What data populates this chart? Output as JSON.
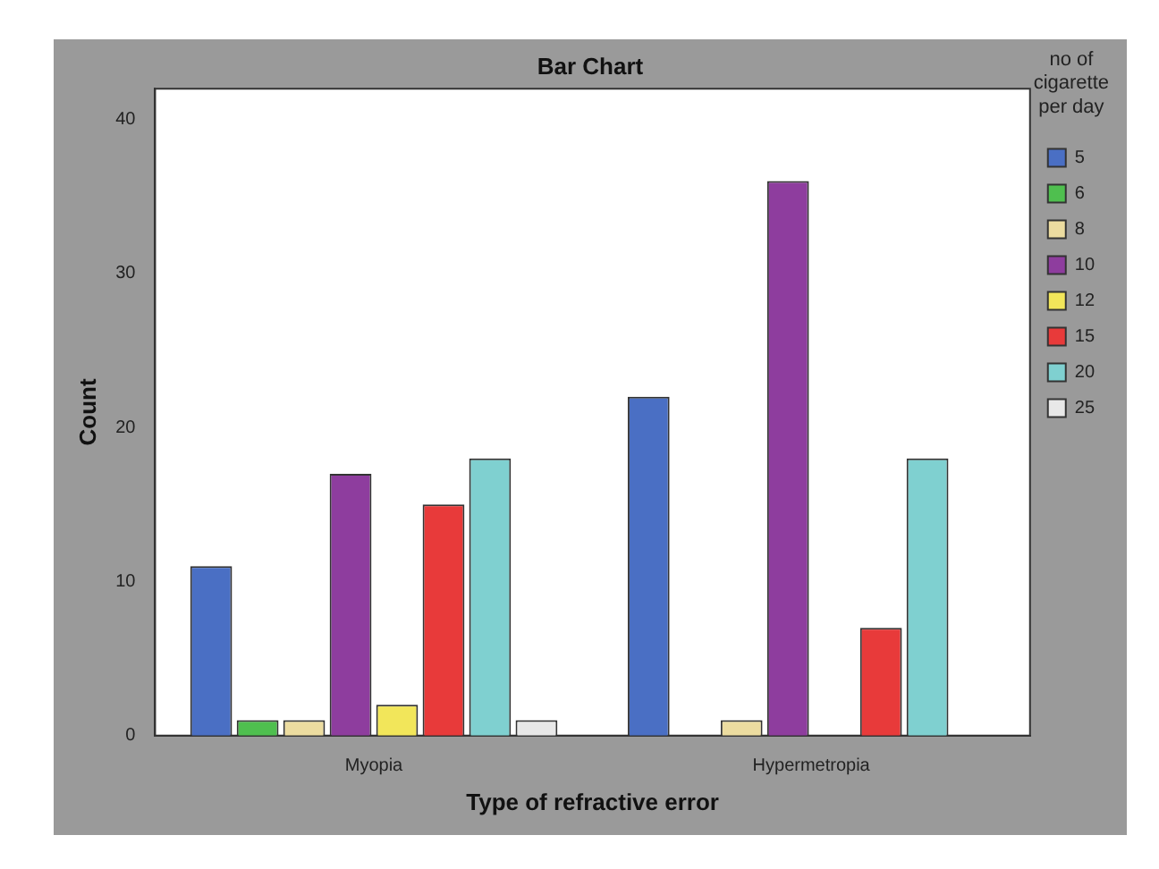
{
  "chart_data": {
    "type": "bar",
    "title": "Bar Chart",
    "xlabel": "Type of refractive error",
    "ylabel": "Count",
    "legend_title": "no of cigarette per day",
    "categories": [
      "Myopia",
      "Hypermetropia"
    ],
    "series": [
      {
        "name": "5",
        "color": "#4a6fc4",
        "values": [
          11,
          22
        ]
      },
      {
        "name": "6",
        "color": "#4fbf4f",
        "values": [
          1,
          0
        ]
      },
      {
        "name": "8",
        "color": "#ecdca0",
        "values": [
          1,
          1
        ]
      },
      {
        "name": "10",
        "color": "#8e3d9e",
        "values": [
          17,
          36
        ]
      },
      {
        "name": "12",
        "color": "#f2e65a",
        "values": [
          2,
          0
        ]
      },
      {
        "name": "15",
        "color": "#e83a3a",
        "values": [
          15,
          7
        ]
      },
      {
        "name": "20",
        "color": "#7fd0d0",
        "values": [
          18,
          18
        ]
      },
      {
        "name": "25",
        "color": "#e8e8e8",
        "values": [
          1,
          0
        ]
      }
    ],
    "ylim": [
      0,
      42
    ],
    "yticks": [
      0,
      10,
      20,
      30,
      40
    ],
    "grid": false,
    "legend": "right"
  }
}
